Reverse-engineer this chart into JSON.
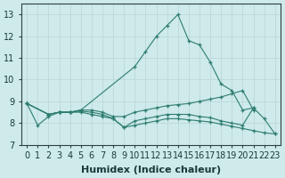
{
  "xlabel": "Humidex (Indice chaleur)",
  "color": "#2e7d6e",
  "bg_color": "#ceeaea",
  "grid_color": "#b8d4d4",
  "ylim": [
    7.0,
    13.5
  ],
  "xlim": [
    -0.5,
    23.5
  ],
  "yticks": [
    7,
    8,
    9,
    10,
    11,
    12,
    13
  ],
  "xticks": [
    0,
    1,
    2,
    3,
    4,
    5,
    6,
    7,
    8,
    9,
    10,
    11,
    12,
    13,
    14,
    15,
    16,
    17,
    18,
    19,
    20,
    21,
    22,
    23
  ],
  "tick_fontsize": 7,
  "label_fontsize": 8,
  "lines": [
    {
      "x": [
        0,
        1,
        2,
        3,
        4,
        5,
        10,
        11,
        12,
        13,
        14,
        15,
        16,
        17,
        18,
        19,
        20,
        21
      ],
      "y": [
        8.9,
        7.9,
        8.3,
        8.5,
        8.5,
        8.6,
        10.6,
        11.3,
        12.0,
        12.5,
        13.0,
        11.8,
        11.6,
        10.8,
        9.8,
        9.5,
        8.6,
        8.7
      ]
    },
    {
      "x": [
        0,
        2,
        3,
        4,
        5,
        6,
        7,
        8,
        9,
        10,
        11,
        12,
        13,
        14,
        15,
        16,
        17,
        18,
        19,
        20,
        21
      ],
      "y": [
        8.9,
        8.4,
        8.5,
        8.5,
        8.6,
        8.6,
        8.5,
        8.3,
        8.3,
        8.5,
        8.6,
        8.7,
        8.8,
        8.85,
        8.9,
        9.0,
        9.1,
        9.2,
        9.35,
        9.5,
        8.6
      ]
    },
    {
      "x": [
        0,
        2,
        3,
        4,
        5,
        6,
        7,
        8,
        9,
        10,
        11,
        12,
        13,
        14,
        15,
        16,
        17,
        18,
        19,
        20,
        21,
        22,
        23
      ],
      "y": [
        8.9,
        8.4,
        8.5,
        8.5,
        8.55,
        8.5,
        8.4,
        8.2,
        7.8,
        8.1,
        8.2,
        8.3,
        8.4,
        8.4,
        8.4,
        8.3,
        8.25,
        8.1,
        8.0,
        7.9,
        8.7,
        8.2,
        7.5
      ]
    },
    {
      "x": [
        0,
        2,
        3,
        4,
        5,
        6,
        7,
        8,
        9,
        10,
        11,
        12,
        13,
        14,
        15,
        16,
        17,
        18,
        19,
        20,
        21,
        22,
        23
      ],
      "y": [
        8.9,
        8.4,
        8.5,
        8.5,
        8.5,
        8.4,
        8.3,
        8.2,
        7.8,
        7.9,
        8.0,
        8.1,
        8.2,
        8.2,
        8.15,
        8.1,
        8.05,
        7.95,
        7.85,
        7.75,
        7.65,
        7.55,
        7.5
      ]
    }
  ]
}
